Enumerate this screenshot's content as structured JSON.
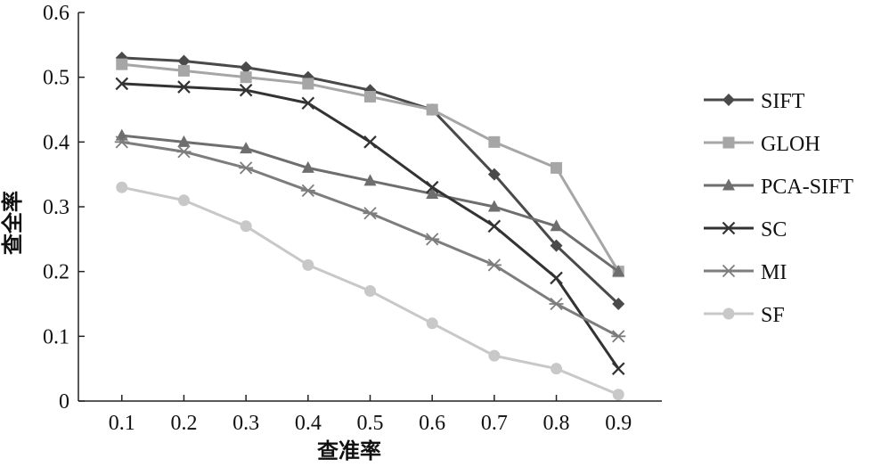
{
  "chart_data": {
    "type": "line",
    "xlabel": "查准率",
    "ylabel": "查全率",
    "x": [
      0.1,
      0.2,
      0.3,
      0.4,
      0.5,
      0.6,
      0.7,
      0.8,
      0.9
    ],
    "xticks": [
      "0.1",
      "0.2",
      "0.3",
      "0.4",
      "0.5",
      "0.6",
      "0.7",
      "0.8",
      "0.9"
    ],
    "yticks": [
      "0",
      "0.1",
      "0.2",
      "0.3",
      "0.4",
      "0.5",
      "0.6"
    ],
    "ytick_values": [
      0,
      0.1,
      0.2,
      0.3,
      0.4,
      0.5,
      0.6
    ],
    "xlim": [
      0.03,
      0.97
    ],
    "ylim": [
      0,
      0.6
    ],
    "grid": false,
    "legend_position": "right",
    "series": [
      {
        "name": "SIFT",
        "marker": "diamond",
        "color": "#4a4a4a",
        "values": [
          0.53,
          0.525,
          0.515,
          0.5,
          0.48,
          0.45,
          0.35,
          0.24,
          0.15
        ]
      },
      {
        "name": "GLOH",
        "marker": "square",
        "color": "#a6a6a6",
        "values": [
          0.52,
          0.51,
          0.5,
          0.49,
          0.47,
          0.45,
          0.4,
          0.36,
          0.2
        ]
      },
      {
        "name": "PCA-SIFT",
        "marker": "triangle",
        "color": "#6e6e6e",
        "values": [
          0.41,
          0.4,
          0.39,
          0.36,
          0.34,
          0.32,
          0.3,
          0.27,
          0.2
        ]
      },
      {
        "name": "SC",
        "marker": "x",
        "color": "#333333",
        "values": [
          0.49,
          0.485,
          0.48,
          0.46,
          0.4,
          0.33,
          0.27,
          0.19,
          0.05
        ]
      },
      {
        "name": "MI",
        "marker": "asterisk",
        "color": "#7d7d7d",
        "values": [
          0.4,
          0.385,
          0.36,
          0.325,
          0.29,
          0.25,
          0.21,
          0.15,
          0.1
        ]
      },
      {
        "name": "SF",
        "marker": "circle",
        "color": "#c8c8c8",
        "values": [
          0.33,
          0.31,
          0.27,
          0.21,
          0.17,
          0.12,
          0.07,
          0.05,
          0.01
        ]
      }
    ]
  }
}
